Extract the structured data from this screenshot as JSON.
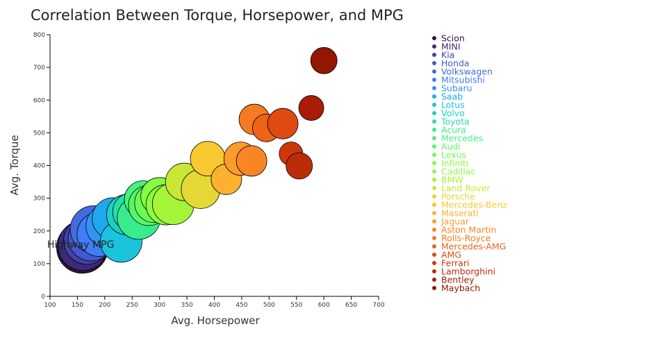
{
  "chart_data": {
    "type": "scatter",
    "title": "Correlation Between Torque, Horsepower, and MPG",
    "xlabel": "Avg. Horsepower",
    "ylabel": "Avg. Torque",
    "xlim": [
      100,
      700
    ],
    "ylim": [
      0,
      800
    ],
    "xticks": [
      100,
      150,
      200,
      250,
      300,
      350,
      400,
      450,
      500,
      550,
      600,
      650,
      700
    ],
    "yticks": [
      0,
      100,
      200,
      300,
      400,
      500,
      600,
      700,
      800
    ],
    "size_label": "Highway MPG",
    "legend_position": "right",
    "grid": false,
    "series": [
      {
        "name": "Scion",
        "color": "#30123b",
        "x": 159,
        "y": 149,
        "size": 37
      },
      {
        "name": "MINI",
        "color": "#3a2a78",
        "x": 160,
        "y": 155,
        "size": 36
      },
      {
        "name": "Kia",
        "color": "#4143a8",
        "x": 168,
        "y": 170,
        "size": 34
      },
      {
        "name": "Honda",
        "color": "#4458cc",
        "x": 175,
        "y": 178,
        "size": 33
      },
      {
        "name": "Volkswagen",
        "color": "#4669e0",
        "x": 180,
        "y": 205,
        "size": 34
      },
      {
        "name": "Mitsubishi",
        "color": "#3f7ef6",
        "x": 190,
        "y": 190,
        "size": 32
      },
      {
        "name": "Subaru",
        "color": "#3294f8",
        "x": 205,
        "y": 215,
        "size": 31
      },
      {
        "name": "Saab",
        "color": "#1fa8ec",
        "x": 215,
        "y": 238,
        "size": 30
      },
      {
        "name": "Lotus",
        "color": "#1bc3dc",
        "x": 230,
        "y": 168,
        "size": 30
      },
      {
        "name": "Volvo",
        "color": "#1dd0c5",
        "x": 240,
        "y": 250,
        "size": 29
      },
      {
        "name": "Toyota",
        "color": "#26e0a8",
        "x": 250,
        "y": 258,
        "size": 28
      },
      {
        "name": "Acura",
        "color": "#38ec8e",
        "x": 262,
        "y": 240,
        "size": 31
      },
      {
        "name": "Mercedes",
        "color": "#45f47c",
        "x": 270,
        "y": 296,
        "size": 27
      },
      {
        "name": "Audi",
        "color": "#55f868",
        "x": 280,
        "y": 278,
        "size": 29
      },
      {
        "name": "Lexus",
        "color": "#6bfc55",
        "x": 290,
        "y": 285,
        "size": 28
      },
      {
        "name": "Infiniti",
        "color": "#85fd44",
        "x": 300,
        "y": 306,
        "size": 27
      },
      {
        "name": "Cadillac",
        "color": "#8ffa3e",
        "x": 312,
        "y": 280,
        "size": 29
      },
      {
        "name": "BMW",
        "color": "#a4f43a",
        "x": 325,
        "y": 283,
        "size": 30
      },
      {
        "name": "Land Rover",
        "color": "#c9e737",
        "x": 345,
        "y": 350,
        "size": 27
      },
      {
        "name": "Porsche",
        "color": "#e3d836",
        "x": 375,
        "y": 328,
        "size": 28
      },
      {
        "name": "Mercedes-Benz",
        "color": "#f8c931",
        "x": 388,
        "y": 421,
        "size": 25
      },
      {
        "name": "Maserati",
        "color": "#fdb130",
        "x": 422,
        "y": 358,
        "size": 22
      },
      {
        "name": "Jaguar",
        "color": "#fd9b2c",
        "x": 448,
        "y": 421,
        "size": 24
      },
      {
        "name": "Aston Martin",
        "color": "#fa8525",
        "x": 468,
        "y": 414,
        "size": 22
      },
      {
        "name": "Rolls-Royce",
        "color": "#f57a22",
        "x": 473,
        "y": 541,
        "size": 22
      },
      {
        "name": "Mercedes-AMG",
        "color": "#ec6418",
        "x": 495,
        "y": 515,
        "size": 20
      },
      {
        "name": "AMG",
        "color": "#df4a12",
        "x": 525,
        "y": 528,
        "size": 22
      },
      {
        "name": "Ferrari",
        "color": "#cc370b",
        "x": 540,
        "y": 436,
        "size": 17
      },
      {
        "name": "Lamborghini",
        "color": "#bd2c08",
        "x": 555,
        "y": 399,
        "size": 19
      },
      {
        "name": "Bentley",
        "color": "#aa1c05",
        "x": 577,
        "y": 576,
        "size": 18
      },
      {
        "name": "Maybach",
        "color": "#931602",
        "x": 600,
        "y": 721,
        "size": 19
      }
    ]
  }
}
